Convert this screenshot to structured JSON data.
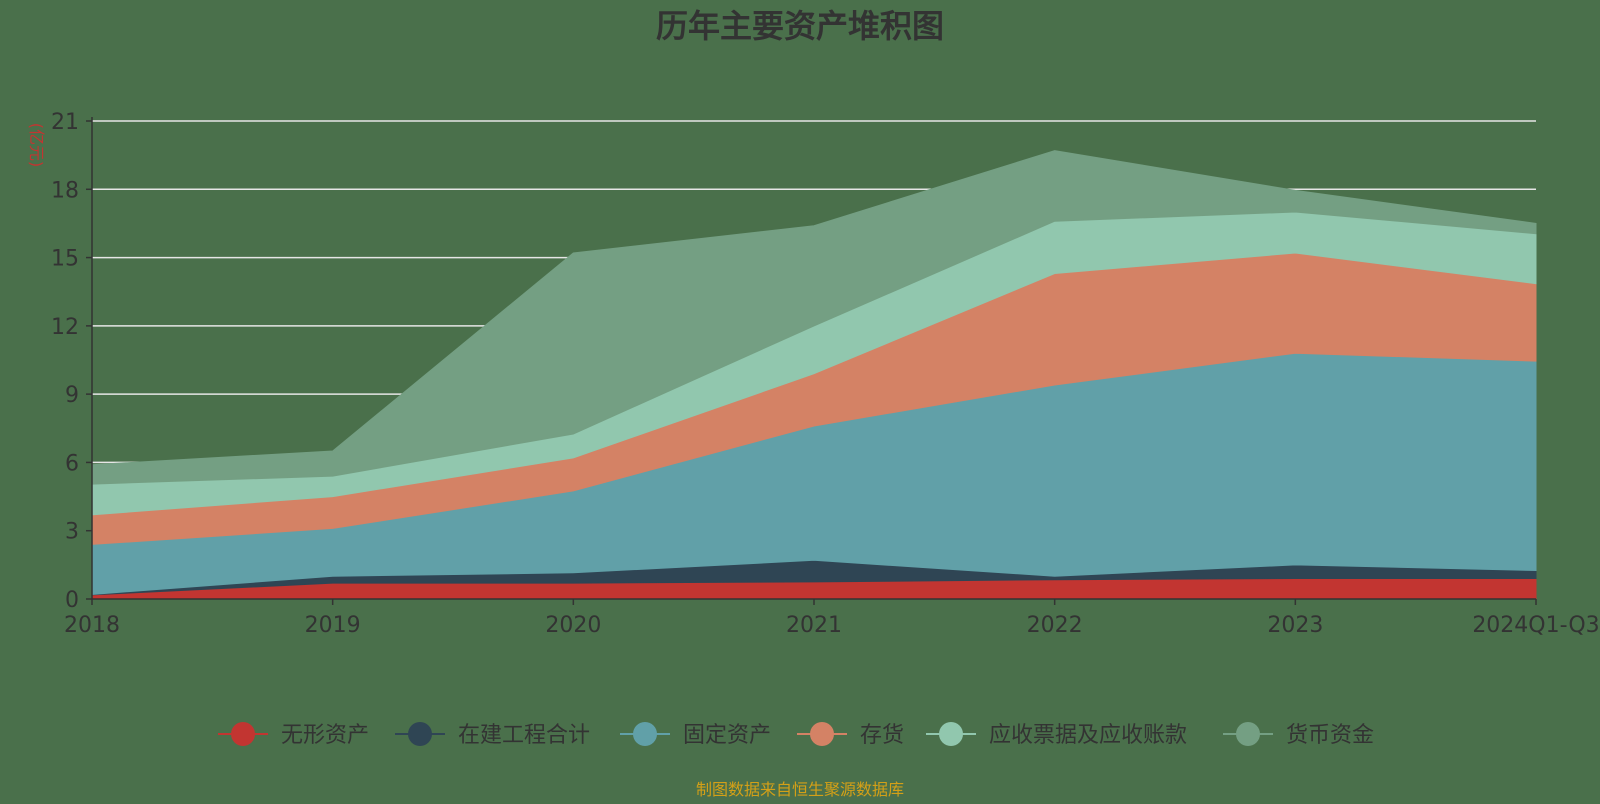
{
  "chart_data": {
    "type": "area",
    "stacked": true,
    "title": "历年主要资产堆积图",
    "unit_label": "(亿元)",
    "categories": [
      "2018",
      "2019",
      "2020",
      "2021",
      "2022",
      "2023",
      "2024Q1-Q3"
    ],
    "ylim": [
      0,
      21
    ],
    "yticks": [
      0,
      3,
      6,
      9,
      12,
      15,
      18,
      21
    ],
    "grid": true,
    "legend_position": "bottom",
    "series": [
      {
        "name": "无形资产",
        "color": "#c23531",
        "values": [
          0.18,
          0.7,
          0.7,
          0.75,
          0.85,
          0.9,
          0.9
        ]
      },
      {
        "name": "在建工程合计",
        "color": "#2f4554",
        "values": [
          0.02,
          0.3,
          0.45,
          0.95,
          0.15,
          0.6,
          0.35
        ]
      },
      {
        "name": "固定资产",
        "color": "#61a0a8",
        "values": [
          2.2,
          2.1,
          3.6,
          5.9,
          8.4,
          9.3,
          9.2
        ]
      },
      {
        "name": "存货",
        "color": "#d48265",
        "values": [
          1.3,
          1.4,
          1.45,
          2.3,
          4.9,
          4.4,
          3.4
        ]
      },
      {
        "name": "应收票据及应收账款",
        "color": "#91c7ae",
        "values": [
          1.35,
          0.9,
          1.05,
          2.1,
          2.3,
          1.8,
          2.2
        ]
      },
      {
        "name": "货币资金",
        "color": "#749f83",
        "values": [
          0.85,
          1.1,
          7.95,
          4.4,
          3.1,
          0.95,
          0.45
        ]
      }
    ]
  },
  "footer": {
    "source_text": "制图数据来自恒生聚源数据库"
  }
}
